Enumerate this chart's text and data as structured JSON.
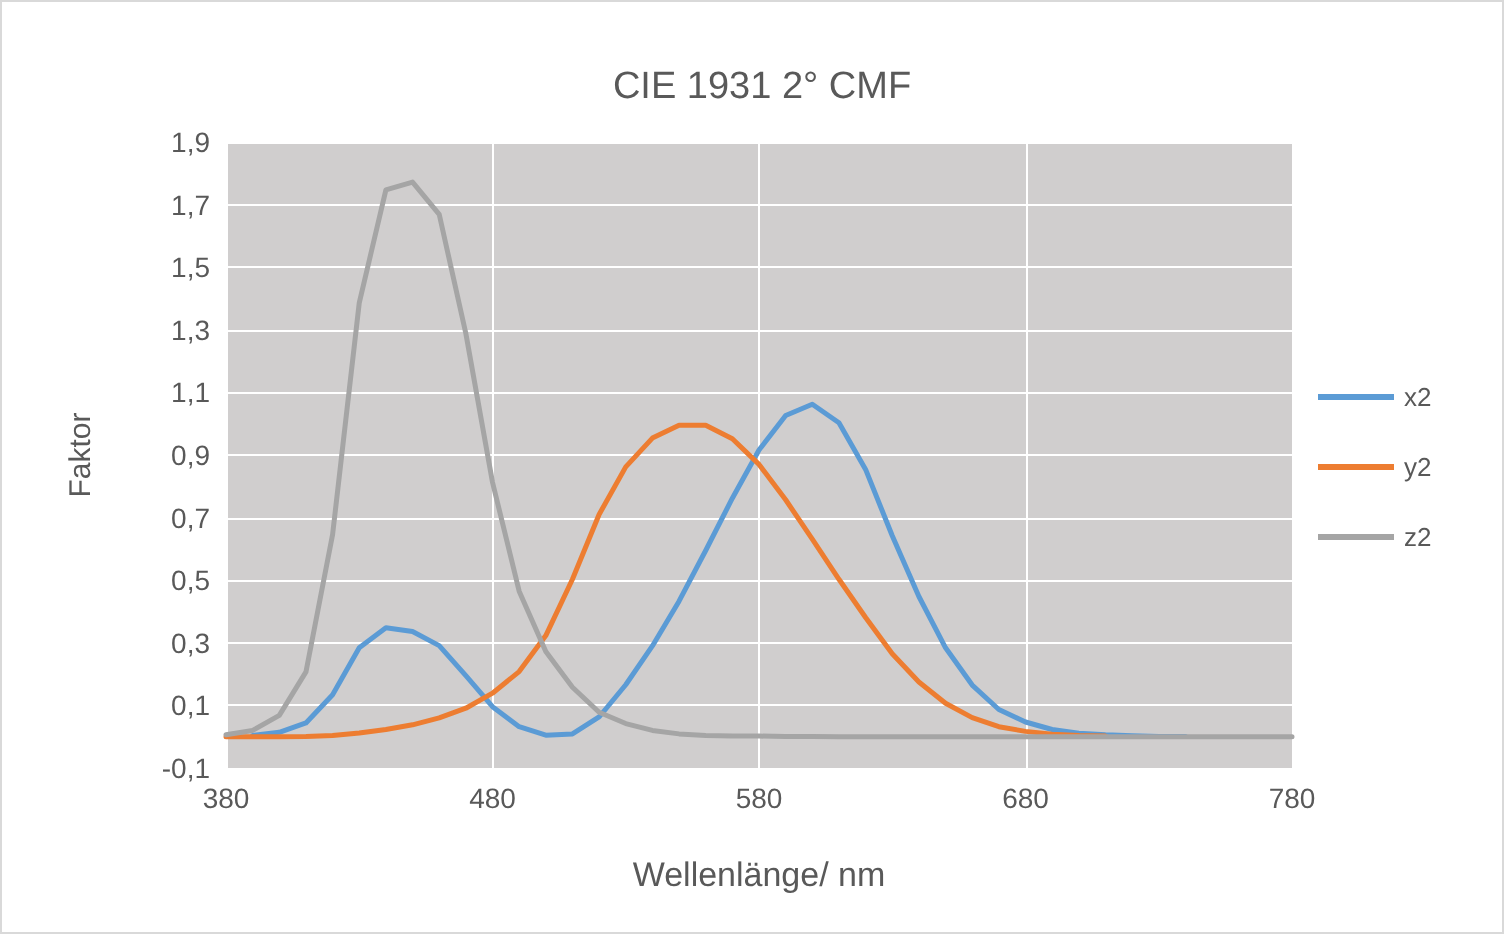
{
  "chart_data": {
    "type": "line",
    "title": "CIE 1931 2° CMF",
    "xlabel": "Wellenlänge/ nm",
    "ylabel": "Faktor",
    "x": [
      380,
      390,
      400,
      410,
      420,
      430,
      440,
      450,
      460,
      470,
      480,
      490,
      500,
      510,
      520,
      530,
      540,
      550,
      560,
      570,
      580,
      590,
      600,
      610,
      620,
      630,
      640,
      650,
      660,
      670,
      680,
      690,
      700,
      710,
      720,
      730,
      740,
      750,
      760,
      770,
      780
    ],
    "series": [
      {
        "name": "x2",
        "color": "#5b9bd5",
        "values": [
          null,
          0.004,
          0.014,
          0.044,
          0.134,
          0.284,
          0.348,
          0.336,
          0.291,
          0.195,
          0.096,
          0.032,
          0.005,
          0.009,
          0.063,
          0.166,
          0.29,
          0.433,
          0.595,
          0.762,
          0.916,
          1.026,
          1.062,
          1.003,
          0.854,
          0.642,
          0.448,
          0.284,
          0.165,
          0.087,
          0.047,
          0.023,
          0.011,
          0.006,
          0.003,
          0.001,
          0.001,
          null,
          null,
          null,
          null
        ]
      },
      {
        "name": "y2",
        "color": "#ed7d31",
        "values": [
          0,
          0,
          0,
          0.001,
          0.004,
          0.012,
          0.023,
          0.038,
          0.06,
          0.091,
          0.139,
          0.208,
          0.323,
          0.503,
          0.71,
          0.862,
          0.954,
          0.995,
          0.995,
          0.952,
          0.87,
          0.757,
          0.631,
          0.503,
          0.381,
          0.265,
          0.175,
          0.107,
          0.061,
          0.032,
          0.017,
          0.008,
          0.004,
          0.002,
          null,
          null,
          null,
          null,
          null,
          null,
          null
        ]
      },
      {
        "name": "z2",
        "color": "#a5a5a5",
        "values": [
          0.006,
          0.02,
          0.068,
          0.207,
          0.646,
          1.386,
          1.747,
          1.772,
          1.669,
          1.288,
          0.813,
          0.465,
          0.272,
          0.158,
          0.078,
          0.042,
          0.02,
          0.009,
          0.004,
          0.002,
          0.002,
          0.001,
          0.001,
          0,
          0,
          0,
          0,
          0,
          0,
          0,
          0,
          0,
          0,
          0,
          0,
          0,
          0,
          0,
          0,
          0,
          0
        ]
      }
    ],
    "xlim": [
      380,
      780
    ],
    "xticks": [
      380,
      480,
      580,
      680,
      780
    ],
    "ylim": [
      -0.1,
      1.9
    ],
    "yticks": [
      {
        "value": -0.1,
        "label": "-0,1"
      },
      {
        "value": 0.1,
        "label": "0,1"
      },
      {
        "value": 0.3,
        "label": "0,3"
      },
      {
        "value": 0.5,
        "label": "0,5"
      },
      {
        "value": 0.7,
        "label": "0,7"
      },
      {
        "value": 0.9,
        "label": "0,9"
      },
      {
        "value": 1.1,
        "label": "1,1"
      },
      {
        "value": 1.3,
        "label": "1,3"
      },
      {
        "value": 1.5,
        "label": "1,5"
      },
      {
        "value": 1.7,
        "label": "1,7"
      },
      {
        "value": 1.9,
        "label": "1,9"
      }
    ],
    "grid": true,
    "legend": "right",
    "marker": "none",
    "line_style": "solid"
  }
}
